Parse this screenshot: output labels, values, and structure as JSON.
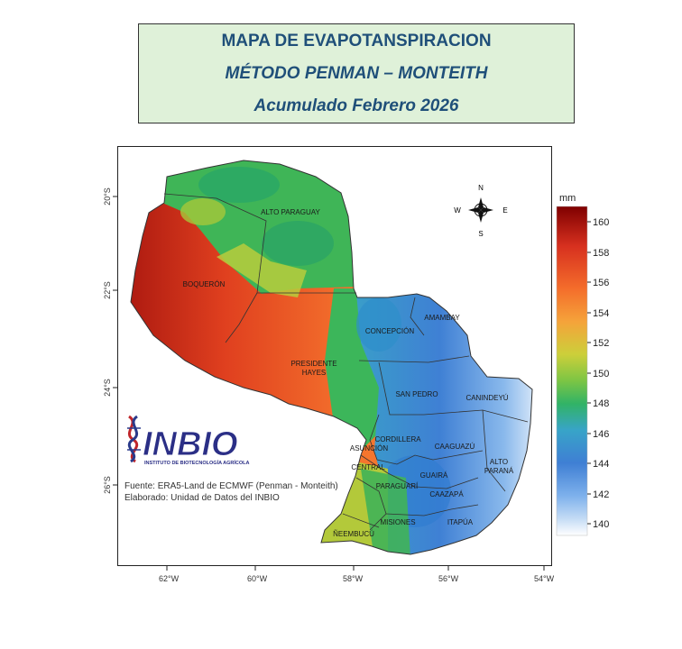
{
  "title": {
    "line1": "MAPA DE EVAPOTANSPIRACION",
    "line2": "MÉTODO PENMAN – MONTEITH",
    "line3": "Acumulado Febrero 2026"
  },
  "x_ticks": [
    "62°W",
    "60°W",
    "58°W",
    "56°W",
    "54°W"
  ],
  "y_ticks": [
    "20°S",
    "22°S",
    "24°S",
    "26°S"
  ],
  "departments": [
    "ALTO PARAGUAY",
    "BOQUERÓN",
    "PRESIDENTE",
    "HAYES",
    "CONCEPCIÓN",
    "AMAMBAY",
    "SAN PEDRO",
    "CANINDEYÚ",
    "CORDILLERA",
    "ASUNCIÓN",
    "CENTRAL",
    "CAAGUAZÚ",
    "ALTO",
    "PARANÁ",
    "GUAIRÁ",
    "PARAGUARÍ",
    "CAAZAPÁ",
    "ÑEEMBUCÚ",
    "MISIONES",
    "ITAPÚA"
  ],
  "compass": {
    "n": "N",
    "s": "S",
    "e": "E",
    "w": "W"
  },
  "logo": {
    "text": "INBIO",
    "subtitle": "INSTITUTO DE BIOTECNOLOGÍA AGRÍCOLA"
  },
  "source": {
    "line1": "Fuente: ERA5-Land de ECMWF (Penman - Monteith)",
    "line2": "Elaborado: Unidad de Datos del INBIO"
  },
  "colorbar": {
    "unit": "mm",
    "ticks": [
      "160",
      "158",
      "156",
      "154",
      "152",
      "150",
      "148",
      "146",
      "144",
      "142",
      "140"
    ],
    "colors": [
      "#7f0000",
      "#d7301f",
      "#f46d2b",
      "#f5a33a",
      "#cccf3a",
      "#7cc544",
      "#31b366",
      "#38a4c8",
      "#3f7fd4",
      "#7eb1ec",
      "#c5dcf5",
      "#ffffff"
    ]
  }
}
